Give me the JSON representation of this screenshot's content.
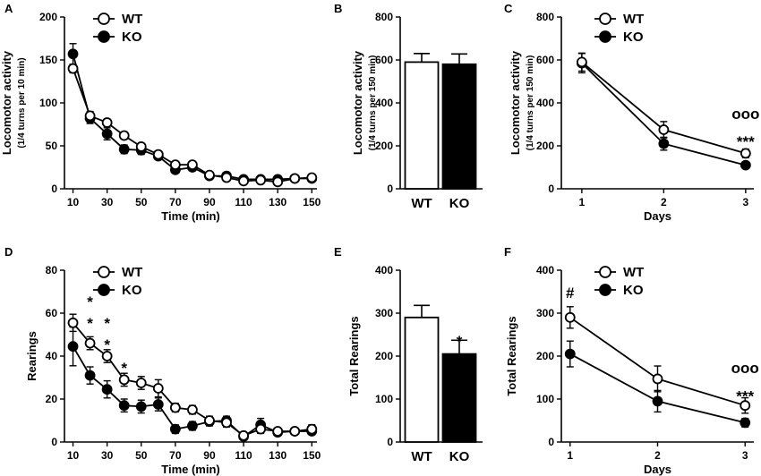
{
  "colors": {
    "wt_fill": "#ffffff",
    "ko_fill": "#000000",
    "stroke": "#000000"
  },
  "chart_data": [
    {
      "id": "A",
      "panel_label": "A",
      "type": "line",
      "ylabel": "Locomotor activity",
      "ylabel_sub": "(1/4 turns per 10 min)",
      "xlabel": "Time (min)",
      "xlim": [
        5,
        153
      ],
      "ylim": [
        0,
        200
      ],
      "xticks": [
        10,
        30,
        50,
        70,
        90,
        110,
        130,
        150
      ],
      "yticks": [
        0,
        50,
        100,
        150,
        200
      ],
      "x": [
        10,
        20,
        30,
        40,
        50,
        60,
        70,
        80,
        90,
        100,
        110,
        120,
        130,
        140,
        150
      ],
      "series": [
        {
          "name": "WT",
          "values": [
            140,
            85,
            77,
            62,
            49,
            40,
            28,
            28,
            16,
            13,
            9,
            10,
            8,
            12,
            13
          ],
          "errors": [
            5,
            5,
            4,
            4,
            4,
            4,
            3,
            4,
            3,
            3,
            2,
            2,
            2,
            3,
            4
          ]
        },
        {
          "name": "KO",
          "values": [
            157,
            82,
            64,
            46,
            45,
            38,
            22,
            25,
            15,
            15,
            11,
            11,
            11,
            12,
            12
          ],
          "errors": [
            12,
            6,
            7,
            5,
            5,
            4,
            3,
            4,
            3,
            3,
            2,
            2,
            2,
            3,
            3
          ]
        }
      ],
      "legend": [
        "WT",
        "KO"
      ],
      "annotations": []
    },
    {
      "id": "B",
      "panel_label": "B",
      "type": "bar",
      "ylabel": "Locomotor activity",
      "ylabel_sub": "(1/4 turns per 150 min)",
      "xlabel": "",
      "categories": [
        "WT",
        "KO"
      ],
      "values": [
        590,
        580
      ],
      "errors": [
        40,
        48
      ],
      "ylim": [
        0,
        800
      ],
      "yticks": [
        0,
        200,
        400,
        600,
        800
      ],
      "annotations": []
    },
    {
      "id": "C",
      "panel_label": "C",
      "type": "line",
      "ylabel": "Locomotor activity",
      "ylabel_sub": "(1/4 turns per 150 min)",
      "xlabel": "Days",
      "xlim": [
        0.75,
        3.1
      ],
      "ylim": [
        0,
        800
      ],
      "xticks": [
        1,
        2,
        3
      ],
      "yticks": [
        0,
        200,
        400,
        600,
        800
      ],
      "x": [
        1,
        2,
        3
      ],
      "series": [
        {
          "name": "WT",
          "values": [
            590,
            275,
            165
          ],
          "errors": [
            42,
            38,
            20
          ]
        },
        {
          "name": "KO",
          "values": [
            585,
            210,
            110
          ],
          "errors": [
            45,
            30,
            12
          ]
        }
      ],
      "legend": [
        "WT",
        "KO"
      ],
      "annotations": [
        {
          "text": "ooo",
          "x": 3,
          "y": 325
        },
        {
          "text": "***",
          "x": 3,
          "y": 245
        }
      ]
    },
    {
      "id": "D",
      "panel_label": "D",
      "type": "line",
      "ylabel": "Rearings",
      "ylabel_sub": "",
      "xlabel": "Time (min)",
      "xlim": [
        5,
        153
      ],
      "ylim": [
        0,
        80
      ],
      "xticks": [
        10,
        30,
        50,
        70,
        90,
        110,
        130,
        150
      ],
      "yticks": [
        0,
        20,
        40,
        60,
        80
      ],
      "x": [
        10,
        20,
        30,
        40,
        50,
        60,
        70,
        80,
        90,
        100,
        110,
        120,
        130,
        140,
        150
      ],
      "series": [
        {
          "name": "WT",
          "values": [
            55.5,
            46,
            40,
            29,
            27.5,
            25,
            16,
            15,
            10,
            9,
            3,
            6,
            5,
            5,
            6
          ],
          "errors": [
            4,
            3,
            3,
            3,
            3,
            4,
            2,
            2,
            2,
            2,
            1,
            2,
            1,
            1,
            2
          ]
        },
        {
          "name": "KO",
          "values": [
            44.5,
            31,
            24.5,
            17,
            16.5,
            17.5,
            6,
            7.5,
            9.5,
            10,
            2.5,
            8,
            4.5,
            5,
            5
          ],
          "errors": [
            9,
            4,
            4,
            3,
            3,
            3,
            2,
            2,
            2,
            2,
            1,
            3,
            1,
            1,
            1
          ]
        }
      ],
      "legend": [
        "WT",
        "KO"
      ],
      "annotations": [
        {
          "text": "*",
          "x": 20,
          "y": 68
        },
        {
          "text": "*",
          "x": 20,
          "y": 58
        },
        {
          "text": "*",
          "x": 30,
          "y": 58
        },
        {
          "text": "*",
          "x": 30,
          "y": 48
        },
        {
          "text": "*",
          "x": 40,
          "y": 37
        }
      ]
    },
    {
      "id": "E",
      "panel_label": "E",
      "type": "bar",
      "ylabel": "Total Rearings",
      "ylabel_sub": "",
      "xlabel": "",
      "categories": [
        "WT",
        "KO"
      ],
      "values": [
        290,
        205
      ],
      "errors": [
        28,
        32
      ],
      "ylim": [
        0,
        400
      ],
      "yticks": [
        0,
        100,
        200,
        300,
        400
      ],
      "annotations": [
        {
          "text": "*",
          "x": "KO",
          "y": 248
        }
      ]
    },
    {
      "id": "F",
      "panel_label": "F",
      "type": "line",
      "ylabel": "Total Rearings",
      "ylabel_sub": "",
      "xlabel": "Days",
      "xlim": [
        0.9,
        3.1
      ],
      "ylim": [
        0,
        400
      ],
      "xticks": [
        1,
        2,
        3
      ],
      "yticks": [
        0,
        100,
        200,
        300,
        400
      ],
      "x": [
        1,
        2,
        3
      ],
      "series": [
        {
          "name": "WT",
          "values": [
            290,
            147,
            85
          ],
          "errors": [
            25,
            30,
            18
          ]
        },
        {
          "name": "KO",
          "values": [
            205,
            95,
            45
          ],
          "errors": [
            30,
            25,
            10
          ]
        }
      ],
      "legend": [
        "WT",
        "KO"
      ],
      "annotations": [
        {
          "text": "#",
          "x": 1,
          "y": 335
        },
        {
          "text": "ooo",
          "x": 3,
          "y": 160
        },
        {
          "text": "***",
          "x": 3,
          "y": 120
        }
      ]
    }
  ]
}
